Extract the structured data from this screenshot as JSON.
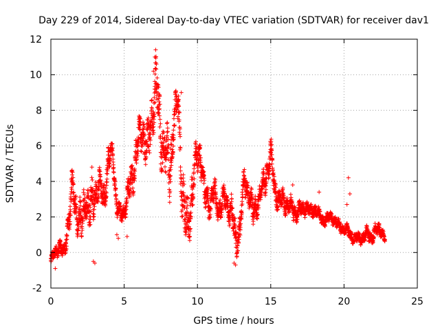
{
  "chart_data": {
    "type": "scatter",
    "title": "Day 229 of 2014, Sidereal Day-to-day VTEC variation (SDTVAR) for receiver dav1",
    "xlabel": "GPS time / hours",
    "ylabel": "SDTVAR / TECUs",
    "xlim": [
      0,
      25
    ],
    "ylim": [
      -2,
      12
    ],
    "xticks": [
      0,
      5,
      10,
      15,
      20,
      25
    ],
    "yticks": [
      -2,
      0,
      2,
      4,
      6,
      8,
      10,
      12
    ],
    "grid": true,
    "marker": "+",
    "color": "#ff0000",
    "series": [
      {
        "name": "SDTVAR dav1",
        "x": [
          0.0,
          0.3,
          0.6,
          0.9,
          1.2,
          1.5,
          1.8,
          2.1,
          2.4,
          2.7,
          3.0,
          3.3,
          3.6,
          3.9,
          4.2,
          4.5,
          4.8,
          5.1,
          5.4,
          5.7,
          6.0,
          6.3,
          6.6,
          6.9,
          7.2,
          7.5,
          7.8,
          8.1,
          8.4,
          8.7,
          9.0,
          9.3,
          9.6,
          9.9,
          10.2,
          10.5,
          10.8,
          11.1,
          11.4,
          11.7,
          12.0,
          12.3,
          12.6,
          12.9,
          13.2,
          13.5,
          13.8,
          14.1,
          14.4,
          14.7,
          15.0,
          15.3,
          15.6,
          15.9,
          16.2,
          16.5,
          16.8,
          17.1,
          17.4,
          17.7,
          18.0,
          18.3,
          18.6,
          18.9,
          19.2,
          19.5,
          19.8,
          20.1,
          20.4,
          20.7,
          21.0,
          21.3,
          21.6,
          21.9,
          22.2,
          22.5,
          22.8
        ],
        "y": [
          -0.5,
          0.0,
          0.4,
          -0.2,
          2.0,
          3.5,
          2.2,
          1.5,
          3.2,
          2.0,
          3.4,
          3.8,
          3.0,
          5.0,
          5.8,
          2.5,
          2.0,
          2.8,
          3.5,
          5.0,
          6.2,
          7.0,
          5.5,
          8.0,
          9.5,
          6.5,
          5.8,
          4.5,
          7.5,
          8.2,
          3.0,
          1.0,
          3.5,
          5.0,
          5.8,
          3.0,
          2.8,
          3.4,
          2.5,
          3.0,
          2.8,
          2.5,
          0.5,
          1.5,
          4.0,
          3.6,
          2.0,
          3.0,
          3.4,
          4.5,
          5.5,
          3.5,
          2.8,
          3.0,
          2.6,
          2.5,
          2.2,
          2.4,
          2.6,
          2.2,
          2.5,
          2.0,
          1.8,
          1.9,
          2.0,
          1.6,
          1.4,
          1.3,
          1.0,
          0.8,
          0.8,
          0.9,
          1.0,
          0.9,
          1.2,
          1.4,
          0.6
        ],
        "spread": [
          0.4,
          0.5,
          0.5,
          0.6,
          1.2,
          1.4,
          1.3,
          1.6,
          1.2,
          1.8,
          1.4,
          1.0,
          1.2,
          1.2,
          0.6,
          0.8,
          0.6,
          0.8,
          1.2,
          1.5,
          1.5,
          1.6,
          1.8,
          1.8,
          2.0,
          2.0,
          2.0,
          2.2,
          1.5,
          1.2,
          2.5,
          2.0,
          2.0,
          1.2,
          1.2,
          1.2,
          1.0,
          1.0,
          1.0,
          1.0,
          0.8,
          1.2,
          1.2,
          1.2,
          1.2,
          1.0,
          1.2,
          1.0,
          0.8,
          1.2,
          1.0,
          1.0,
          0.8,
          0.8,
          0.6,
          0.8,
          0.6,
          0.6,
          0.5,
          0.5,
          0.5,
          0.5,
          0.4,
          0.4,
          0.4,
          0.4,
          0.4,
          0.4,
          0.4,
          0.4,
          0.4,
          0.4,
          0.5,
          0.5,
          0.5,
          0.5,
          0.3
        ],
        "outliers": [
          [
            7.15,
            11.4
          ],
          [
            7.1,
            11.0
          ],
          [
            7.2,
            10.6
          ],
          [
            7.0,
            10.2
          ],
          [
            8.9,
            9.0
          ],
          [
            8.7,
            8.8
          ],
          [
            2.8,
            4.8
          ],
          [
            20.3,
            4.2
          ],
          [
            20.4,
            3.3
          ],
          [
            20.2,
            2.7
          ],
          [
            12.6,
            -0.7
          ],
          [
            12.5,
            -0.6
          ],
          [
            4.5,
            1.0
          ],
          [
            4.6,
            0.8
          ],
          [
            2.9,
            -0.5
          ],
          [
            3.0,
            -0.6
          ],
          [
            0.3,
            -0.9
          ],
          [
            5.2,
            0.9
          ],
          [
            18.3,
            3.4
          ],
          [
            16.5,
            3.8
          ]
        ]
      }
    ]
  }
}
